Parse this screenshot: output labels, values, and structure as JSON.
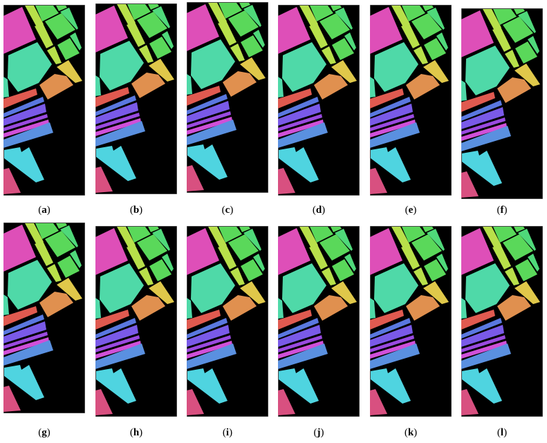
{
  "figure": {
    "panels": [
      {
        "label": "a"
      },
      {
        "label": "b"
      },
      {
        "label": "c"
      },
      {
        "label": "d"
      },
      {
        "label": "e"
      },
      {
        "label": "f"
      },
      {
        "label": "g"
      },
      {
        "label": "h"
      },
      {
        "label": "i"
      },
      {
        "label": "j"
      },
      {
        "label": "k"
      },
      {
        "label": "l"
      }
    ],
    "class_colors": {
      "background": "#000000",
      "magenta": "#de4fb8",
      "turquoise": "#4fd9a8",
      "green": "#5ad85a",
      "yellow_green": "#b8e04a",
      "yellow": "#e0c84a",
      "orange": "#e0904f",
      "red": "#e05a50",
      "blue": "#5a78e0",
      "purple": "#7a5ae8",
      "violet": "#9a4ae0",
      "pink_magenta": "#d050d8",
      "light_blue": "#5a90e0",
      "cyan": "#4fd4e0",
      "rose": "#d85080"
    }
  }
}
